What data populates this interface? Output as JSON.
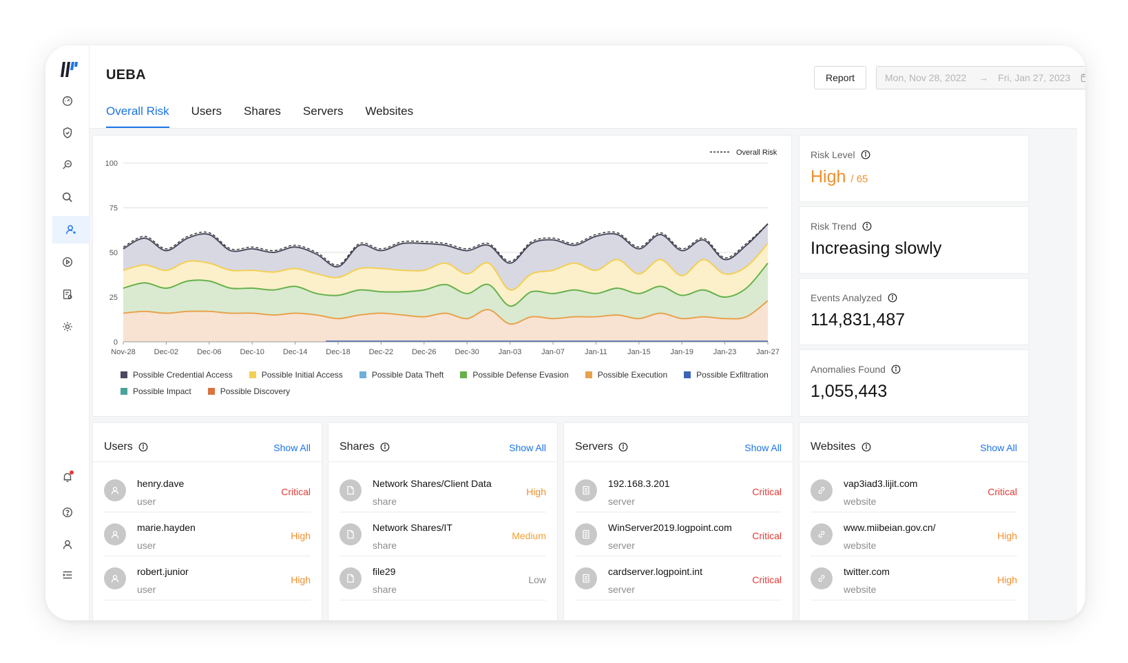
{
  "app": {
    "title": "UEBA"
  },
  "header": {
    "report_label": "Report",
    "date_start": "Mon, Nov 28, 2022",
    "date_arrow": "→",
    "date_end": "Fri, Jan 27, 2023"
  },
  "sidebar": {
    "items": [
      {
        "name": "dashboard-icon"
      },
      {
        "name": "shield-icon"
      },
      {
        "name": "investigate-icon"
      },
      {
        "name": "search-icon"
      },
      {
        "name": "users-icon"
      },
      {
        "name": "play-icon"
      },
      {
        "name": "reports-icon"
      },
      {
        "name": "settings-icon"
      },
      {
        "name": "bell-icon"
      },
      {
        "name": "help-icon"
      },
      {
        "name": "user-icon"
      },
      {
        "name": "menu-icon"
      }
    ],
    "active": "users-icon"
  },
  "tabs": [
    "Overall Risk",
    "Users",
    "Shares",
    "Servers",
    "Websites"
  ],
  "active_tab": "Overall Risk",
  "stats": {
    "risk_level_label": "Risk Level",
    "risk_level_value": "High",
    "risk_level_score": "/ 65",
    "risk_trend_label": "Risk Trend",
    "risk_trend_value": "Increasing slowly",
    "events_label": "Events Analyzed",
    "events_value": "114,831,487",
    "anomalies_label": "Anomalies Found",
    "anomalies_value": "1,055,443"
  },
  "lists": {
    "show_all": "Show All",
    "users": {
      "title": "Users",
      "rows": [
        {
          "name": "henry.dave",
          "type": "user",
          "level": "Critical"
        },
        {
          "name": "marie.hayden",
          "type": "user",
          "level": "High"
        },
        {
          "name": "robert.junior",
          "type": "user",
          "level": "High"
        }
      ]
    },
    "shares": {
      "title": "Shares",
      "rows": [
        {
          "name": "Network Shares/Client Data",
          "type": "share",
          "level": "High"
        },
        {
          "name": "Network Shares/IT",
          "type": "share",
          "level": "Medium"
        },
        {
          "name": "file29",
          "type": "share",
          "level": "Low"
        }
      ]
    },
    "servers": {
      "title": "Servers",
      "rows": [
        {
          "name": "192.168.3.201",
          "type": "server",
          "level": "Critical"
        },
        {
          "name": "WinServer2019.logpoint.com",
          "type": "server",
          "level": "Critical"
        },
        {
          "name": "cardserver.logpoint.int",
          "type": "server",
          "level": "Critical"
        }
      ]
    },
    "websites": {
      "title": "Websites",
      "rows": [
        {
          "name": "vap3iad3.lijit.com",
          "type": "website",
          "level": "Critical"
        },
        {
          "name": "www.miibeian.gov.cn/",
          "type": "website",
          "level": "High"
        },
        {
          "name": "twitter.com",
          "type": "website",
          "level": "High"
        }
      ]
    }
  },
  "colors": {
    "accent": "#1a73e8",
    "critical": "#e53935",
    "high": "#ef8f2c"
  },
  "chart_data": {
    "type": "area",
    "title": "",
    "legend_top": "Overall Risk",
    "ylim": [
      0,
      100
    ],
    "yticks": [
      0,
      25,
      50,
      75,
      100
    ],
    "xticks": [
      "Nov-28",
      "Dec-02",
      "Dec-06",
      "Dec-10",
      "Dec-14",
      "Dec-18",
      "Dec-22",
      "Dec-26",
      "Dec-30",
      "Jan-03",
      "Jan-07",
      "Jan-11",
      "Jan-15",
      "Jan-19",
      "Jan-23",
      "Jan-27"
    ],
    "x": [
      "Nov-28",
      "Nov-30",
      "Dec-02",
      "Dec-04",
      "Dec-06",
      "Dec-08",
      "Dec-10",
      "Dec-12",
      "Dec-14",
      "Dec-16",
      "Dec-18",
      "Dec-20",
      "Dec-22",
      "Dec-24",
      "Dec-26",
      "Dec-28",
      "Dec-30",
      "Jan-01",
      "Jan-03",
      "Jan-05",
      "Jan-07",
      "Jan-09",
      "Jan-11",
      "Jan-13",
      "Jan-15",
      "Jan-17",
      "Jan-19",
      "Jan-21",
      "Jan-23",
      "Jan-25",
      "Jan-27"
    ],
    "series": [
      {
        "name": "Possible Execution",
        "color": "#e8a24c",
        "fill": "#f8e3d2",
        "values": [
          16,
          17,
          16,
          17,
          17,
          16,
          16,
          15,
          16,
          15,
          13,
          15,
          16,
          15,
          14,
          16,
          13,
          18,
          10,
          14,
          13,
          14,
          14,
          15,
          13,
          16,
          13,
          14,
          13,
          14,
          23
        ]
      },
      {
        "name": "Possible Defense Evasion",
        "color": "#66b04b",
        "fill": "#d9ead0",
        "values": [
          30,
          33,
          30,
          34,
          34,
          30,
          30,
          29,
          31,
          27,
          26,
          29,
          28,
          28,
          29,
          32,
          27,
          32,
          20,
          28,
          27,
          29,
          27,
          30,
          27,
          31,
          26,
          29,
          25,
          30,
          44
        ]
      },
      {
        "name": "Possible Initial Access",
        "color": "#f3cf52",
        "fill": "#fbf0c9",
        "values": [
          40,
          43,
          40,
          45,
          44,
          40,
          40,
          39,
          41,
          38,
          36,
          41,
          41,
          40,
          40,
          44,
          38,
          44,
          29,
          38,
          40,
          44,
          40,
          46,
          38,
          46,
          37,
          46,
          38,
          42,
          55
        ]
      },
      {
        "name": "Possible Credential Access",
        "color": "#4a4a5e",
        "fill": "#d8d8e2",
        "values": [
          52,
          58,
          51,
          58,
          60,
          51,
          52,
          50,
          53,
          49,
          42,
          54,
          51,
          55,
          55,
          54,
          51,
          54,
          44,
          55,
          57,
          54,
          59,
          60,
          52,
          60,
          51,
          57,
          46,
          54,
          66
        ]
      }
    ],
    "overall_risk": [
      53,
      59,
      52,
      59,
      61,
      52,
      53,
      51,
      54,
      50,
      43,
      55,
      52,
      56,
      56,
      55,
      52,
      55,
      45,
      56,
      58,
      55,
      60,
      61,
      53,
      61,
      52,
      58,
      47,
      55,
      66
    ],
    "minor_series": [
      {
        "name": "Possible Data Theft",
        "color": "#6fb0d8"
      },
      {
        "name": "Possible Exfiltration",
        "color": "#3b63b8"
      },
      {
        "name": "Possible Impact",
        "color": "#4aa39a"
      },
      {
        "name": "Possible Discovery",
        "color": "#d9743f"
      }
    ],
    "legend": [
      {
        "name": "Possible Credential Access",
        "color": "#4a4a5e"
      },
      {
        "name": "Possible Initial Access",
        "color": "#f3cf52"
      },
      {
        "name": "Possible Data Theft",
        "color": "#6fb0d8"
      },
      {
        "name": "Possible Defense Evasion",
        "color": "#66b04b"
      },
      {
        "name": "Possible Execution",
        "color": "#e8a24c"
      },
      {
        "name": "Possible Exfiltration",
        "color": "#3b63b8"
      },
      {
        "name": "Possible Impact",
        "color": "#4aa39a"
      },
      {
        "name": "Possible Discovery",
        "color": "#d9743f"
      }
    ]
  }
}
